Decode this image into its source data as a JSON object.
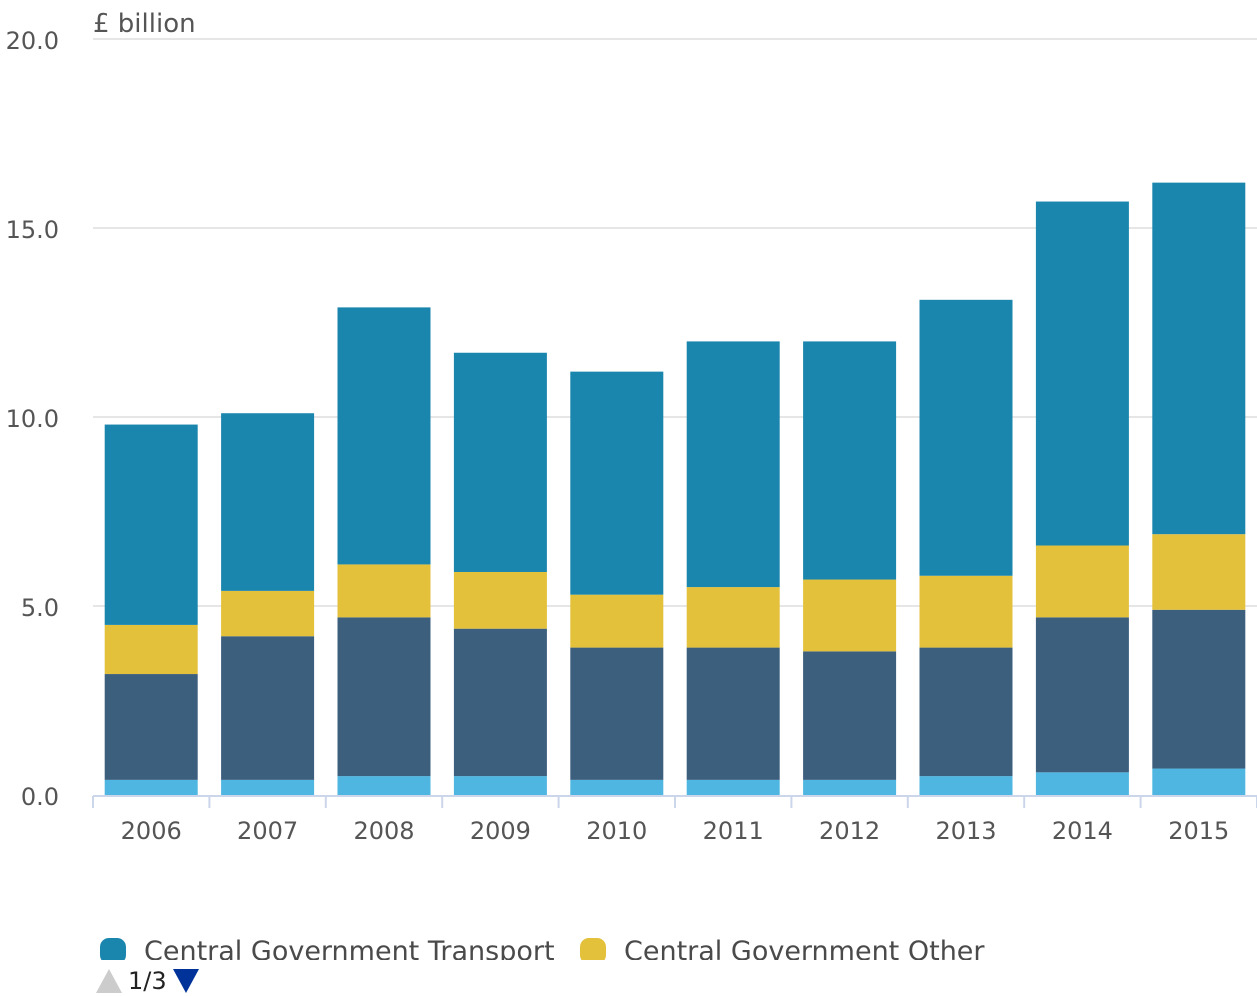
{
  "chart_data": {
    "type": "bar",
    "stacked": true,
    "ylabel": "£ billion",
    "ylim": [
      0,
      20
    ],
    "yticks": [
      "0.0",
      "5.0",
      "10.0",
      "15.0",
      "20.0"
    ],
    "grid": true,
    "categories": [
      "2006",
      "2007",
      "2008",
      "2009",
      "2010",
      "2011",
      "2012",
      "2013",
      "2014",
      "2015"
    ],
    "series": [
      {
        "name": "",
        "color": "#4eb6e0",
        "values": [
          0.4,
          0.4,
          0.5,
          0.5,
          0.4,
          0.4,
          0.4,
          0.5,
          0.6,
          0.7
        ]
      },
      {
        "name": "",
        "color": "#3d5f7e",
        "values": [
          2.8,
          3.8,
          4.2,
          3.9,
          3.5,
          3.5,
          3.4,
          3.4,
          4.1,
          4.2
        ]
      },
      {
        "name": "Central Government Other",
        "color": "#e3c13b",
        "values": [
          1.3,
          1.2,
          1.4,
          1.5,
          1.4,
          1.6,
          1.9,
          1.9,
          1.9,
          2.0
        ]
      },
      {
        "name": "Central Government Transport",
        "color": "#1b86ad",
        "values": [
          5.3,
          4.7,
          6.8,
          5.8,
          5.9,
          6.5,
          6.3,
          7.3,
          9.1,
          9.3
        ]
      }
    ]
  },
  "legend": {
    "items": [
      {
        "label": "Central Government Transport",
        "color": "#1b86ad"
      },
      {
        "label": "Central Government Other",
        "color": "#e3c13b"
      }
    ]
  },
  "pager": {
    "text": "1/3"
  }
}
